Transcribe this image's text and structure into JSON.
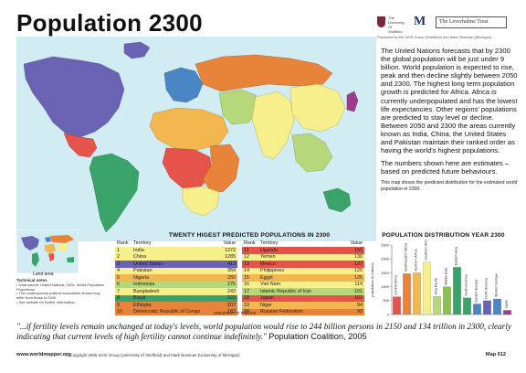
{
  "title": "Population 2300",
  "logos": {
    "sheffield_line1": "The",
    "sheffield_line2": "University",
    "sheffield_line3": "Of",
    "sheffield_line4": "Sheffield.",
    "michigan": "M",
    "leverhulme": "The Leverhulme Trust",
    "credit": "Produced by the SASI Group (Sheffield) and Mark Newman (Michigan)"
  },
  "description": {
    "paragraph1": "The United Nations forecasts that by 2300 the global population will be just under 9 billion. World population is expected to rise, peak and then decline slightly between 2050 and 2300. The highest long term population growth is predicted for Africa. Africa is currently underpopulated and has the lowest life expectancies. Other regions' populations are predicted to stay level or decline. Between 2050 and 2300 the areas currently known as India, China, the United States and Pakistan maintain their ranked order as having the world's highest populations.",
    "paragraph2": "The numbers shown here are estimates – based on predicted future behaviours.",
    "paragraph3": "This map shows the predicted distribution for the estimated world population in 2300."
  },
  "inset": {
    "label": "Land area"
  },
  "technical_notes": {
    "title": "Technical notes",
    "note1": "• Data source: United Nations, 2004, World Population Projections",
    "note2": "• The contemporary political boundaries shown may differ from those in 2300",
    "note3": "• See website for further information."
  },
  "table": {
    "title": "TWENTY HIGEST PREDICTED POPULATIONS IN 2300",
    "headers": {
      "rank": "Rank",
      "territory": "Territory",
      "value": "Value"
    },
    "unit": "population in millions",
    "rows": [
      {
        "rank": "1",
        "territory": "India",
        "value": "1372",
        "color": "#f6ef8c"
      },
      {
        "rank": "2",
        "territory": "China",
        "value": "1285",
        "color": "#f6ef8c"
      },
      {
        "rank": "3",
        "territory": "United States",
        "value": "413",
        "color": "#6a63b3"
      },
      {
        "rank": "4",
        "territory": "Pakistan",
        "value": "359",
        "color": "#f6ef8c"
      },
      {
        "rank": "5",
        "territory": "Nigeria",
        "value": "283",
        "color": "#f2b84f"
      },
      {
        "rank": "6",
        "territory": "Indonesia",
        "value": "276",
        "color": "#b6d77a"
      },
      {
        "rank": "7",
        "territory": "Bangladesh",
        "value": "243",
        "color": "#f6ef8c"
      },
      {
        "rank": "8",
        "territory": "Brazil",
        "value": "223",
        "color": "#3aa36a"
      },
      {
        "rank": "9",
        "territory": "Ethiopia",
        "value": "207",
        "color": "#e8833a"
      },
      {
        "rank": "10",
        "territory": "Democratic Republic of Congo",
        "value": "183",
        "color": "#e8833a"
      },
      {
        "rank": "11",
        "territory": "Uganda",
        "value": "155",
        "color": "#e5534b"
      },
      {
        "rank": "12",
        "territory": "Yemen",
        "value": "130",
        "color": "#f6ef8c"
      },
      {
        "rank": "13",
        "territory": "Mexico",
        "value": "127",
        "color": "#e5534b"
      },
      {
        "rank": "14",
        "territory": "Philippines",
        "value": "125",
        "color": "#f6ef8c"
      },
      {
        "rank": "15",
        "territory": "Egypt",
        "value": "125",
        "color": "#f2b84f"
      },
      {
        "rank": "16",
        "territory": "Viet Nam",
        "value": "114",
        "color": "#f6ef8c"
      },
      {
        "rank": "17",
        "territory": "Islamic Republic of Iran",
        "value": "101",
        "color": "#b6d77a"
      },
      {
        "rank": "18",
        "territory": "Japan",
        "value": "101",
        "color": "#e5534b"
      },
      {
        "rank": "19",
        "territory": "Niger",
        "value": "94",
        "color": "#f2b84f"
      },
      {
        "rank": "20",
        "territory": "Russian Federation",
        "value": "92",
        "color": "#e8833a"
      }
    ]
  },
  "chart_data": {
    "type": "bar",
    "title": "POPULATION DISTRIBUTION YEAR 2300",
    "ylabel": "population in millions",
    "ylim": [
      0,
      2500
    ],
    "yticks": [
      "0",
      "500",
      "1000",
      "1500",
      "2000",
      "2500"
    ],
    "categories": [
      "Central Africa",
      "Southeastern Africa",
      "Northern Africa",
      "Southern Africa",
      "Asia Pacific",
      "Middle East",
      "Eastern Asia",
      "South America",
      "Eastern Europe",
      "North America",
      "Western Europe",
      "Japan"
    ],
    "values": [
      640,
      1470,
      1500,
      1890,
      650,
      1000,
      1700,
      600,
      380,
      500,
      560,
      150
    ],
    "colors": [
      "#e5534b",
      "#e8833a",
      "#f2b84f",
      "#f6ef8c",
      "#b6d77a",
      "#8cc04f",
      "#3aa36a",
      "#3aa36a",
      "#4b86c4",
      "#6a63b3",
      "#4b86c4",
      "#9a3d8a"
    ]
  },
  "quote": {
    "text": "\"...if fertility levels remain unchanged at today's levels, world population would rise to 244 billion persons in 2150 and 134 trillion in 2300, clearly indicating that current levels of high fertility cannot continue indefinitely.\"",
    "source": "Population Coalition, 2005"
  },
  "footer": {
    "site": "www.worldmapper.org",
    "copyright": "© Copyright 2006 SASI Group (University of Sheffield) and Mark Newman (University of Michigan)",
    "map_number": "Map 012"
  },
  "map": {
    "ocean_color": "#d2ecf4",
    "regions": [
      {
        "name": "north-america",
        "color": "#6a63b3"
      },
      {
        "name": "mexico",
        "color": "#e5534b"
      },
      {
        "name": "south-america",
        "color": "#3aa36a"
      },
      {
        "name": "greenland",
        "color": "#6a63b3"
      },
      {
        "name": "western-europe",
        "color": "#4b86c4"
      },
      {
        "name": "eastern-europe",
        "color": "#e8833a"
      },
      {
        "name": "northern-africa",
        "color": "#f2b84f"
      },
      {
        "name": "central-africa",
        "color": "#e5534b"
      },
      {
        "name": "southeastern-africa",
        "color": "#e8833a"
      },
      {
        "name": "southern-africa",
        "color": "#f6ef8c"
      },
      {
        "name": "middle-east",
        "color": "#b6d77a"
      },
      {
        "name": "south-asia",
        "color": "#f6ef8c"
      },
      {
        "name": "china",
        "color": "#f6ef8c"
      },
      {
        "name": "southeast-asia",
        "color": "#b6d77a"
      },
      {
        "name": "japan",
        "color": "#9a3d8a"
      },
      {
        "name": "australia",
        "color": "#3aa36a"
      }
    ]
  }
}
